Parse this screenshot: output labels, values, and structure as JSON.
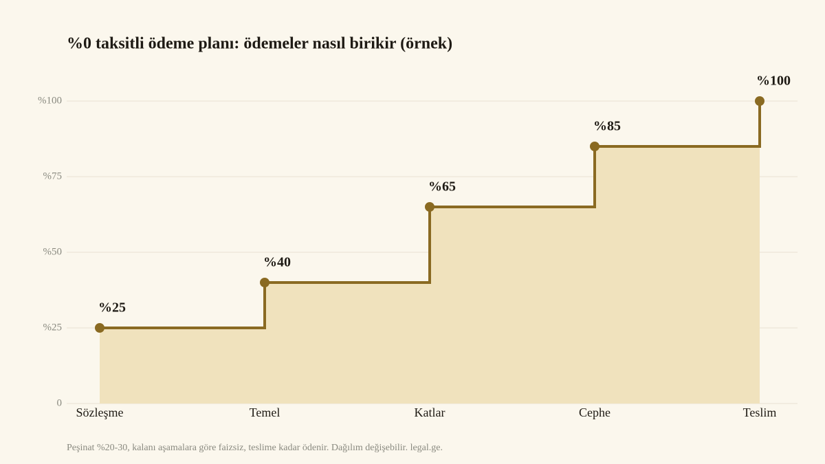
{
  "chart_data": {
    "type": "step",
    "title": "%0 taksitli ödeme planı: ödemeler nasıl birikir (örnek)",
    "note": "Peşinat %20-30, kalanı aşamalara göre faizsiz, teslime kadar ödenir. Dağılım değişebilir. legal.ge.",
    "categories": [
      "Sözleşme",
      "Temel",
      "Katlar",
      "Cephe",
      "Teslim"
    ],
    "values": [
      25,
      40,
      65,
      85,
      100
    ],
    "value_labels": [
      "%25",
      "%40",
      "%65",
      "%85",
      "%100"
    ],
    "color": "#8a6a22",
    "fill": "#f0e2bd",
    "ylim": [
      0,
      100
    ],
    "yticks": [
      0,
      {
        "value": 25,
        "label": "%25"
      },
      {
        "value": 50,
        "label": "%50"
      },
      {
        "value": 75,
        "label": "%75"
      },
      {
        "value": 100,
        "label": "%100"
      }
    ],
    "grid": true
  }
}
